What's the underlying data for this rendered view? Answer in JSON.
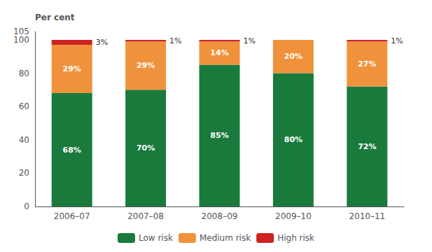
{
  "chart_data": {
    "type": "bar",
    "stacked": true,
    "ylabel": "Per cent",
    "categories": [
      "2006–07",
      "2007–08",
      "2008–09",
      "2009–10",
      "2010–11"
    ],
    "series": [
      {
        "name": "Low risk",
        "color": "#1a7a3c",
        "values": [
          68,
          70,
          85,
          80,
          72
        ],
        "value_labels": [
          "68%",
          "70%",
          "85%",
          "80%",
          "72%"
        ]
      },
      {
        "name": "Medium risk",
        "color": "#f0923b",
        "values": [
          29,
          29,
          14,
          20,
          27
        ],
        "value_labels": [
          "29%",
          "29%",
          "14%",
          "20%",
          "27%"
        ]
      },
      {
        "name": "High risk",
        "color": "#cc2222",
        "values": [
          3,
          1,
          1,
          0,
          1
        ],
        "value_labels": [
          "3%",
          "1%",
          "1%",
          null,
          "1%"
        ]
      }
    ],
    "ylim": [
      0,
      105
    ],
    "yticks": [
      0,
      20,
      40,
      60,
      80,
      100
    ],
    "grid": false,
    "legend": "bottom",
    "data_labels": true
  }
}
